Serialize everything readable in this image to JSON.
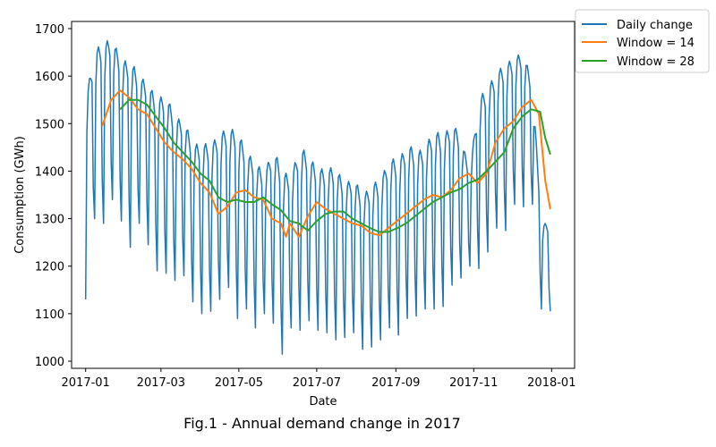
{
  "caption": "Fig.1 - Annual demand change in 2017",
  "chart_data": {
    "type": "line",
    "title": "",
    "xlabel": "Date",
    "ylabel": "Consumption (GWh)",
    "x_range": [
      "2016-12-21",
      "2018-01-19"
    ],
    "ylim": [
      985,
      1715
    ],
    "x_ticks": [
      "2017-01",
      "2017-03",
      "2017-05",
      "2017-07",
      "2017-09",
      "2017-11",
      "2018-01"
    ],
    "y_ticks": [
      1000,
      1100,
      1200,
      1300,
      1400,
      1500,
      1600,
      1700
    ],
    "grid": false,
    "legend": {
      "placement": "outside-top-right",
      "entries": [
        "Daily change",
        "Window = 14",
        "Window = 28"
      ]
    },
    "series": [
      {
        "name": "Daily change",
        "color": "#1f77b4",
        "width": 1.5,
        "style": "weekly-cycle",
        "envelope": {
          "dates": [
            "2017-01-01",
            "2017-01-08",
            "2017-01-15",
            "2017-01-22",
            "2017-01-29",
            "2017-02-05",
            "2017-02-12",
            "2017-02-19",
            "2017-02-26",
            "2017-03-05",
            "2017-03-12",
            "2017-03-19",
            "2017-03-26",
            "2017-04-02",
            "2017-04-09",
            "2017-04-16",
            "2017-04-23",
            "2017-04-30",
            "2017-05-07",
            "2017-05-14",
            "2017-05-21",
            "2017-05-28",
            "2017-06-04",
            "2017-06-11",
            "2017-06-18",
            "2017-06-25",
            "2017-07-02",
            "2017-07-09",
            "2017-07-16",
            "2017-07-23",
            "2017-07-30",
            "2017-08-06",
            "2017-08-13",
            "2017-08-20",
            "2017-08-27",
            "2017-09-03",
            "2017-09-10",
            "2017-09-17",
            "2017-09-24",
            "2017-10-01",
            "2017-10-08",
            "2017-10-15",
            "2017-10-22",
            "2017-10-29",
            "2017-11-05",
            "2017-11-12",
            "2017-11-19",
            "2017-11-26",
            "2017-12-03",
            "2017-12-10",
            "2017-12-17",
            "2017-12-24",
            "2017-12-31"
          ],
          "high": [
            1550,
            1655,
            1670,
            1680,
            1630,
            1635,
            1600,
            1585,
            1550,
            1565,
            1510,
            1510,
            1455,
            1460,
            1455,
            1480,
            1490,
            1485,
            1440,
            1420,
            1395,
            1450,
            1400,
            1390,
            1455,
            1430,
            1405,
            1405,
            1410,
            1370,
            1390,
            1345,
            1375,
            1380,
            1430,
            1420,
            1460,
            1440,
            1450,
            1490,
            1470,
            1505,
            1470,
            1400,
            1555,
            1575,
            1610,
            1625,
            1640,
            1650,
            1585,
            1290,
            1290
          ],
          "low": [
            1130,
            1300,
            1290,
            1340,
            1295,
            1240,
            1290,
            1245,
            1190,
            1185,
            1170,
            1180,
            1125,
            1100,
            1105,
            1130,
            1155,
            1090,
            1110,
            1070,
            1100,
            1080,
            1015,
            1070,
            1065,
            1085,
            1065,
            1060,
            1045,
            1050,
            1060,
            1025,
            1030,
            1045,
            1070,
            1055,
            1090,
            1095,
            1110,
            1110,
            1115,
            1160,
            1175,
            1200,
            1195,
            1230,
            1280,
            1275,
            1330,
            1325,
            1330,
            1110,
            1105
          ]
        }
      },
      {
        "name": "Window = 14",
        "color": "#ff7f0e",
        "width": 2,
        "points": [
          [
            "2017-01-14",
            1495
          ],
          [
            "2017-01-21",
            1550
          ],
          [
            "2017-01-28",
            1570
          ],
          [
            "2017-02-04",
            1555
          ],
          [
            "2017-02-11",
            1530
          ],
          [
            "2017-02-18",
            1520
          ],
          [
            "2017-02-25",
            1490
          ],
          [
            "2017-03-04",
            1460
          ],
          [
            "2017-03-11",
            1440
          ],
          [
            "2017-03-18",
            1425
          ],
          [
            "2017-03-25",
            1405
          ],
          [
            "2017-04-01",
            1375
          ],
          [
            "2017-04-08",
            1355
          ],
          [
            "2017-04-15",
            1310
          ],
          [
            "2017-04-22",
            1325
          ],
          [
            "2017-04-29",
            1355
          ],
          [
            "2017-05-06",
            1360
          ],
          [
            "2017-05-13",
            1345
          ],
          [
            "2017-05-20",
            1340
          ],
          [
            "2017-05-27",
            1300
          ],
          [
            "2017-06-03",
            1290
          ],
          [
            "2017-06-07",
            1262
          ],
          [
            "2017-06-10",
            1290
          ],
          [
            "2017-06-17",
            1262
          ],
          [
            "2017-06-24",
            1305
          ],
          [
            "2017-07-01",
            1335
          ],
          [
            "2017-07-08",
            1320
          ],
          [
            "2017-07-15",
            1310
          ],
          [
            "2017-07-22",
            1300
          ],
          [
            "2017-07-29",
            1290
          ],
          [
            "2017-08-05",
            1285
          ],
          [
            "2017-08-12",
            1270
          ],
          [
            "2017-08-19",
            1265
          ],
          [
            "2017-08-26",
            1280
          ],
          [
            "2017-09-02",
            1295
          ],
          [
            "2017-09-09",
            1310
          ],
          [
            "2017-09-16",
            1325
          ],
          [
            "2017-09-23",
            1340
          ],
          [
            "2017-09-30",
            1350
          ],
          [
            "2017-10-07",
            1345
          ],
          [
            "2017-10-14",
            1360
          ],
          [
            "2017-10-21",
            1385
          ],
          [
            "2017-10-28",
            1395
          ],
          [
            "2017-11-04",
            1375
          ],
          [
            "2017-11-11",
            1395
          ],
          [
            "2017-11-18",
            1460
          ],
          [
            "2017-11-25",
            1490
          ],
          [
            "2017-12-02",
            1505
          ],
          [
            "2017-12-09",
            1535
          ],
          [
            "2017-12-16",
            1550
          ],
          [
            "2017-12-22",
            1520
          ],
          [
            "2017-12-27",
            1380
          ],
          [
            "2017-12-31",
            1320
          ]
        ]
      },
      {
        "name": "Window = 28",
        "color": "#2ca02c",
        "width": 2,
        "points": [
          [
            "2017-01-28",
            1530
          ],
          [
            "2017-02-04",
            1550
          ],
          [
            "2017-02-11",
            1550
          ],
          [
            "2017-02-18",
            1540
          ],
          [
            "2017-02-25",
            1515
          ],
          [
            "2017-03-04",
            1490
          ],
          [
            "2017-03-11",
            1460
          ],
          [
            "2017-03-18",
            1440
          ],
          [
            "2017-03-25",
            1420
          ],
          [
            "2017-04-01",
            1395
          ],
          [
            "2017-04-08",
            1380
          ],
          [
            "2017-04-15",
            1345
          ],
          [
            "2017-04-22",
            1335
          ],
          [
            "2017-04-29",
            1340
          ],
          [
            "2017-05-06",
            1335
          ],
          [
            "2017-05-13",
            1335
          ],
          [
            "2017-05-20",
            1345
          ],
          [
            "2017-05-27",
            1330
          ],
          [
            "2017-06-03",
            1318
          ],
          [
            "2017-06-10",
            1295
          ],
          [
            "2017-06-17",
            1290
          ],
          [
            "2017-06-24",
            1275
          ],
          [
            "2017-07-01",
            1295
          ],
          [
            "2017-07-08",
            1310
          ],
          [
            "2017-07-15",
            1315
          ],
          [
            "2017-07-22",
            1315
          ],
          [
            "2017-07-29",
            1300
          ],
          [
            "2017-08-05",
            1290
          ],
          [
            "2017-08-12",
            1280
          ],
          [
            "2017-08-19",
            1272
          ],
          [
            "2017-08-26",
            1272
          ],
          [
            "2017-09-02",
            1280
          ],
          [
            "2017-09-09",
            1290
          ],
          [
            "2017-09-16",
            1305
          ],
          [
            "2017-09-23",
            1320
          ],
          [
            "2017-09-30",
            1335
          ],
          [
            "2017-10-07",
            1345
          ],
          [
            "2017-10-14",
            1355
          ],
          [
            "2017-10-21",
            1362
          ],
          [
            "2017-10-28",
            1375
          ],
          [
            "2017-11-04",
            1382
          ],
          [
            "2017-11-11",
            1400
          ],
          [
            "2017-11-18",
            1420
          ],
          [
            "2017-11-25",
            1440
          ],
          [
            "2017-12-02",
            1490
          ],
          [
            "2017-12-09",
            1515
          ],
          [
            "2017-12-16",
            1530
          ],
          [
            "2017-12-23",
            1525
          ],
          [
            "2017-12-27",
            1470
          ],
          [
            "2017-12-31",
            1435
          ]
        ]
      }
    ]
  }
}
